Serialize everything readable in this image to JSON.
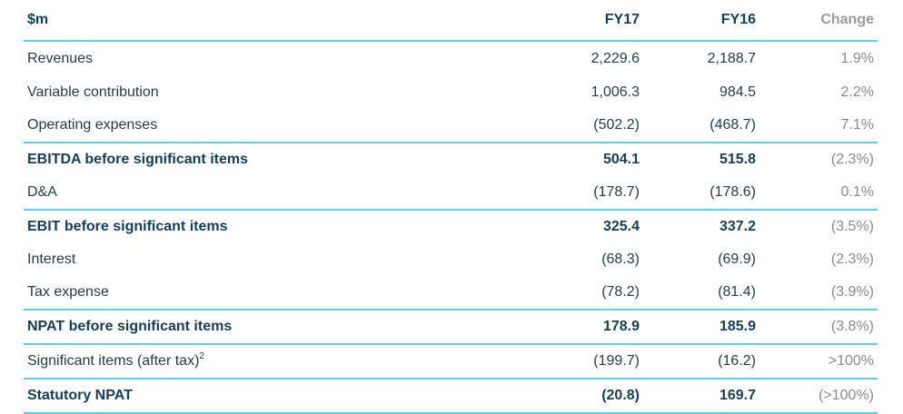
{
  "header": {
    "label": "$m",
    "col1": "FY17",
    "col2": "FY16",
    "col3": "Change"
  },
  "rows": [
    {
      "label": "Revenues",
      "fy17": "2,229.6",
      "fy16": "2,188.7",
      "change": "1.9%"
    },
    {
      "label": "Variable contribution",
      "fy17": "1,006.3",
      "fy16": "984.5",
      "change": "2.2%"
    },
    {
      "label": "Operating expenses",
      "fy17": "(502.2)",
      "fy16": "(468.7)",
      "change": "7.1%"
    },
    {
      "label": "EBITDA before significant items",
      "fy17": "504.1",
      "fy16": "515.8",
      "change": "(2.3%)"
    },
    {
      "label": "D&A",
      "fy17": "(178.7)",
      "fy16": "(178.6)",
      "change": "0.1%"
    },
    {
      "label": "EBIT before significant items",
      "fy17": "325.4",
      "fy16": "337.2",
      "change": "(3.5%)"
    },
    {
      "label": "Interest",
      "fy17": "(68.3)",
      "fy16": "(69.9)",
      "change": "(2.3%)"
    },
    {
      "label": "Tax expense",
      "fy17": "(78.2)",
      "fy16": "(81.4)",
      "change": "(3.9%)"
    },
    {
      "label": "NPAT before significant items",
      "fy17": "178.9",
      "fy16": "185.9",
      "change": "(3.8%)"
    },
    {
      "label": "Significant items (after tax)",
      "label_sup": "2",
      "fy17": "(199.7)",
      "fy16": "(16.2)",
      "change": ">100%"
    },
    {
      "label": "Statutory NPAT",
      "fy17": "(20.8)",
      "fy16": "169.7",
      "change": "(>100%)"
    }
  ]
}
